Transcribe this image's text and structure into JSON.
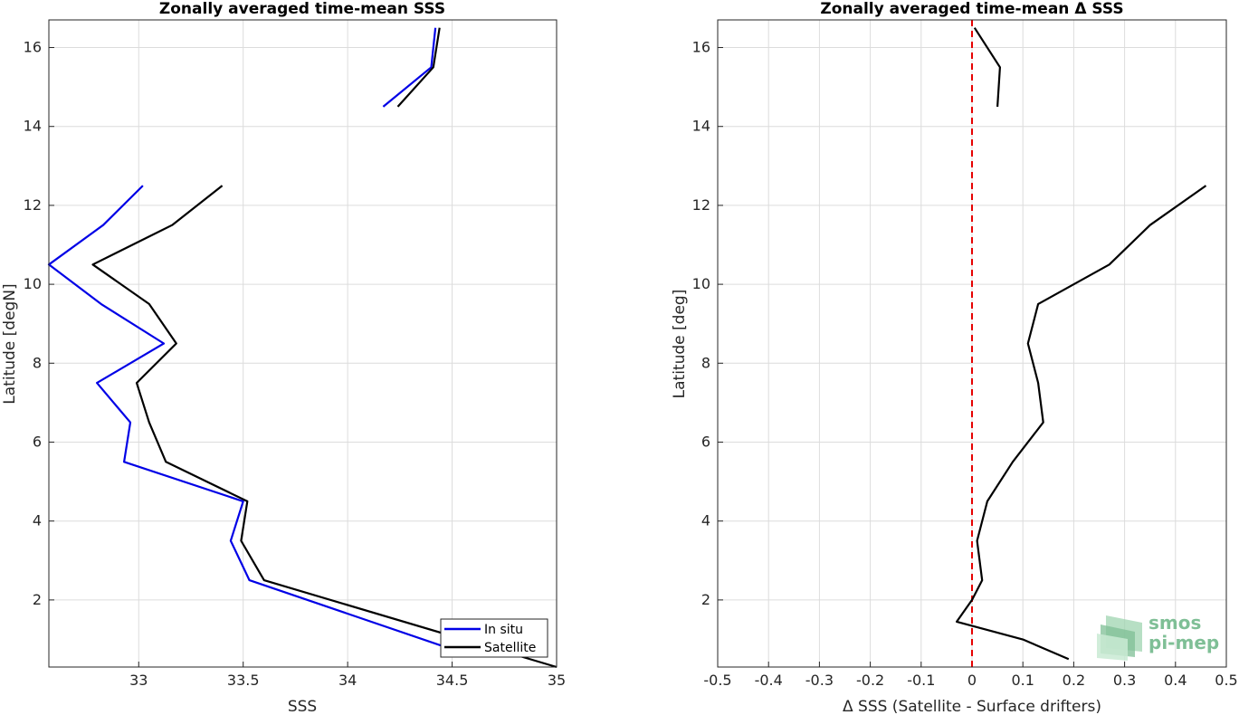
{
  "chart_data": [
    {
      "type": "line",
      "title": "Zonally averaged time-mean SSS",
      "xlabel": "SSS",
      "ylabel": "Latitude [degN]",
      "xlim": [
        32.57,
        35.0
      ],
      "ylim": [
        0.3,
        16.7
      ],
      "xticks": [
        "33",
        "33.5",
        "34",
        "34.5",
        "35"
      ],
      "yticks": [
        "2",
        "4",
        "6",
        "8",
        "10",
        "12",
        "14",
        "16"
      ],
      "grid": true,
      "legend_placement": "bottom-right",
      "series": [
        {
          "name": "In situ",
          "color": "#0000e6",
          "segments": [
            [
              [
                33.02,
                12.5
              ],
              [
                32.83,
                11.5
              ],
              [
                32.57,
                10.5
              ],
              [
                32.82,
                9.5
              ],
              [
                33.12,
                8.5
              ],
              [
                32.8,
                7.5
              ],
              [
                32.96,
                6.5
              ],
              [
                32.93,
                5.5
              ],
              [
                33.5,
                4.5
              ],
              [
                33.44,
                3.5
              ],
              [
                33.53,
                2.5
              ],
              [
                34.5,
                0.75
              ]
            ],
            [
              [
                34.17,
                14.5
              ],
              [
                34.4,
                15.5
              ],
              [
                34.42,
                16.5
              ]
            ]
          ]
        },
        {
          "name": "Satellite",
          "color": "#000000",
          "segments": [
            [
              [
                33.4,
                12.5
              ],
              [
                33.16,
                11.5
              ],
              [
                32.78,
                10.5
              ],
              [
                33.05,
                9.5
              ],
              [
                33.18,
                8.5
              ],
              [
                32.99,
                7.5
              ],
              [
                33.05,
                6.5
              ],
              [
                33.13,
                5.5
              ],
              [
                33.52,
                4.5
              ],
              [
                33.49,
                3.5
              ],
              [
                33.6,
                2.5
              ],
              [
                35.0,
                0.3
              ]
            ],
            [
              [
                34.24,
                14.5
              ],
              [
                34.41,
                15.5
              ],
              [
                34.44,
                16.5
              ]
            ]
          ]
        }
      ]
    },
    {
      "type": "line",
      "title": "Zonally averaged time-mean Δ SSS",
      "xlabel": "Δ SSS (Satellite - Surface drifters)",
      "ylabel": "Latitude [deg]",
      "xlim": [
        -0.5,
        0.5
      ],
      "ylim": [
        0.3,
        16.7
      ],
      "xticks": [
        "-0.5",
        "-0.4",
        "-0.3",
        "-0.2",
        "-0.1",
        "0",
        "0.1",
        "0.2",
        "0.3",
        "0.4",
        "0.5"
      ],
      "yticks": [
        "2",
        "4",
        "6",
        "8",
        "10",
        "12",
        "14",
        "16"
      ],
      "grid": true,
      "reference_line": {
        "x": 0,
        "color": "#e60000",
        "style": "dashed"
      },
      "series": [
        {
          "color": "#000000",
          "segments": [
            [
              [
                0.19,
                0.5
              ],
              [
                0.1,
                1.0
              ],
              [
                -0.03,
                1.45
              ],
              [
                0.0,
                2.0
              ],
              [
                0.02,
                2.5
              ],
              [
                0.01,
                3.5
              ],
              [
                0.03,
                4.5
              ],
              [
                0.08,
                5.5
              ],
              [
                0.14,
                6.5
              ],
              [
                0.13,
                7.5
              ],
              [
                0.11,
                8.5
              ],
              [
                0.13,
                9.5
              ],
              [
                0.27,
                10.5
              ],
              [
                0.35,
                11.5
              ],
              [
                0.46,
                12.5
              ]
            ],
            [
              [
                0.05,
                14.5
              ],
              [
                0.055,
                15.5
              ],
              [
                0.005,
                16.5
              ]
            ]
          ]
        }
      ]
    }
  ],
  "logo": {
    "line1": "smos",
    "line2": "pi-mep"
  }
}
